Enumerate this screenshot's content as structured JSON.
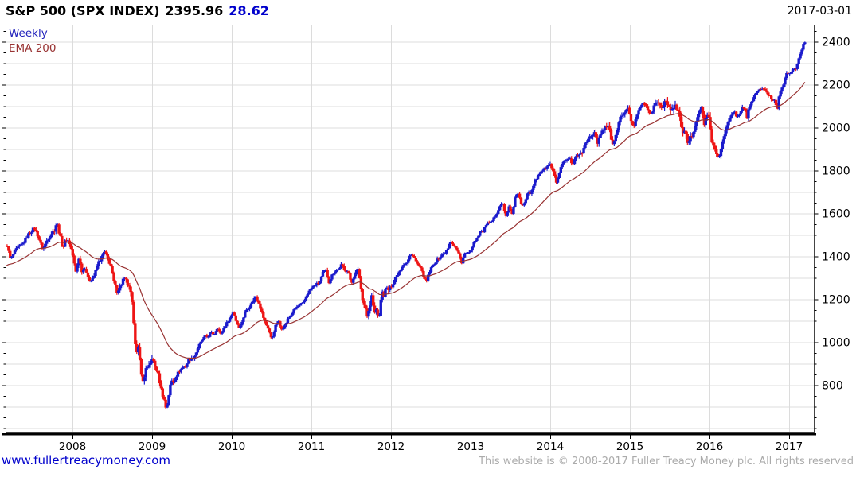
{
  "header": {
    "symbol": "S&P 500 (SPX INDEX)",
    "price": "2395.96",
    "change": "28.62",
    "date": "2017-03-01"
  },
  "legend": {
    "series1": "Weekly",
    "series2": "EMA 200"
  },
  "footer": {
    "link": "www.fullertreacymoney.com",
    "copyright": "This website is © 2008-2017 Fuller Treacy Money plc. All rights reserved"
  },
  "colors": {
    "up_bar": "#1a1acc",
    "down_bar": "#ee1515",
    "ema_line": "#993333",
    "grid": "#dcdcdc",
    "border": "#444444",
    "axis": "#000000",
    "title_change": "#0000cc",
    "legend_weekly": "#2222bb",
    "legend_ema": "#993333",
    "link": "#0000cc",
    "copyright_text": "#ababab"
  },
  "chart_data": {
    "type": "candlestick",
    "timeframe": "weekly",
    "title": "S&P 500 (SPX INDEX)",
    "last_price": 2395.96,
    "change": 28.62,
    "last_date": "2017-03-01",
    "legend_position": "top-left",
    "grid": true,
    "x_ticks": [
      2008,
      2009,
      2010,
      2011,
      2012,
      2013,
      2014,
      2015,
      2016,
      2017
    ],
    "y_ticks": [
      800,
      1000,
      1200,
      1400,
      1600,
      1800,
      2000,
      2200,
      2400
    ],
    "y_grid_step": 100,
    "y_minor_tick_step": 50,
    "ylim": [
      580,
      2480
    ],
    "xlim": [
      2007.16,
      2017.35
    ],
    "x_start": 2007.16,
    "x_end": 2017.19,
    "ema_period_weeks": 40,
    "ema_seed": 1350,
    "price_anchors": [
      [
        2007.14,
        1436
      ],
      [
        2007.18,
        1452
      ],
      [
        2007.22,
        1387
      ],
      [
        2007.3,
        1437
      ],
      [
        2007.38,
        1461
      ],
      [
        2007.45,
        1505
      ],
      [
        2007.52,
        1533
      ],
      [
        2007.56,
        1503
      ],
      [
        2007.6,
        1458
      ],
      [
        2007.63,
        1434
      ],
      [
        2007.68,
        1476
      ],
      [
        2007.73,
        1506
      ],
      [
        2007.78,
        1527
      ],
      [
        2007.8,
        1562
      ],
      [
        2007.84,
        1501
      ],
      [
        2007.88,
        1440
      ],
      [
        2007.92,
        1481
      ],
      [
        2007.96,
        1468
      ],
      [
        2008.0,
        1411
      ],
      [
        2008.04,
        1325
      ],
      [
        2008.08,
        1395
      ],
      [
        2008.12,
        1331
      ],
      [
        2008.16,
        1353
      ],
      [
        2008.2,
        1288
      ],
      [
        2008.24,
        1293
      ],
      [
        2008.28,
        1316
      ],
      [
        2008.32,
        1370
      ],
      [
        2008.36,
        1390
      ],
      [
        2008.4,
        1426
      ],
      [
        2008.44,
        1388
      ],
      [
        2008.48,
        1360
      ],
      [
        2008.52,
        1280
      ],
      [
        2008.56,
        1239
      ],
      [
        2008.6,
        1260
      ],
      [
        2008.64,
        1296
      ],
      [
        2008.68,
        1282
      ],
      [
        2008.71,
        1251
      ],
      [
        2008.74,
        1213
      ],
      [
        2008.77,
        1099
      ],
      [
        2008.8,
        941
      ],
      [
        2008.83,
        968
      ],
      [
        2008.86,
        873
      ],
      [
        2008.89,
        800
      ],
      [
        2008.92,
        887
      ],
      [
        2008.95,
        872
      ],
      [
        2008.98,
        903
      ],
      [
        2009.0,
        932
      ],
      [
        2009.03,
        890
      ],
      [
        2009.06,
        870
      ],
      [
        2009.09,
        826
      ],
      [
        2009.12,
        770
      ],
      [
        2009.15,
        735
      ],
      [
        2009.18,
        683
      ],
      [
        2009.21,
        757
      ],
      [
        2009.24,
        823
      ],
      [
        2009.27,
        816
      ],
      [
        2009.3,
        843
      ],
      [
        2009.34,
        866
      ],
      [
        2009.38,
        882
      ],
      [
        2009.42,
        887
      ],
      [
        2009.46,
        919
      ],
      [
        2009.5,
        923
      ],
      [
        2009.54,
        940
      ],
      [
        2009.58,
        979
      ],
      [
        2009.62,
        1004
      ],
      [
        2009.66,
        1026
      ],
      [
        2009.7,
        1025
      ],
      [
        2009.74,
        1044
      ],
      [
        2009.78,
        1036
      ],
      [
        2009.82,
        1071
      ],
      [
        2009.86,
        1036
      ],
      [
        2009.9,
        1069
      ],
      [
        2009.94,
        1091
      ],
      [
        2009.98,
        1115
      ],
      [
        2010.02,
        1145
      ],
      [
        2010.06,
        1092
      ],
      [
        2010.1,
        1066
      ],
      [
        2010.14,
        1109
      ],
      [
        2010.18,
        1150
      ],
      [
        2010.22,
        1166
      ],
      [
        2010.26,
        1187
      ],
      [
        2010.3,
        1217
      ],
      [
        2010.34,
        1187
      ],
      [
        2010.38,
        1136
      ],
      [
        2010.42,
        1090
      ],
      [
        2010.46,
        1065
      ],
      [
        2010.5,
        1011
      ],
      [
        2010.54,
        1065
      ],
      [
        2010.58,
        1102
      ],
      [
        2010.62,
        1064
      ],
      [
        2010.66,
        1072
      ],
      [
        2010.7,
        1105
      ],
      [
        2010.74,
        1125
      ],
      [
        2010.78,
        1149
      ],
      [
        2010.82,
        1165
      ],
      [
        2010.86,
        1176
      ],
      [
        2010.9,
        1183
      ],
      [
        2010.94,
        1221
      ],
      [
        2010.98,
        1242
      ],
      [
        2011.02,
        1258
      ],
      [
        2011.06,
        1271
      ],
      [
        2011.1,
        1276
      ],
      [
        2011.14,
        1321
      ],
      [
        2011.18,
        1340
      ],
      [
        2011.22,
        1279
      ],
      [
        2011.26,
        1313
      ],
      [
        2011.3,
        1333
      ],
      [
        2011.34,
        1340
      ],
      [
        2011.38,
        1363
      ],
      [
        2011.42,
        1331
      ],
      [
        2011.46,
        1340
      ],
      [
        2011.5,
        1268
      ],
      [
        2011.54,
        1316
      ],
      [
        2011.58,
        1345
      ],
      [
        2011.61,
        1292
      ],
      [
        2011.64,
        1199
      ],
      [
        2011.67,
        1179
      ],
      [
        2011.7,
        1124
      ],
      [
        2011.73,
        1154
      ],
      [
        2011.76,
        1218
      ],
      [
        2011.79,
        1131
      ],
      [
        2011.82,
        1155
      ],
      [
        2011.85,
        1099
      ],
      [
        2011.88,
        1238
      ],
      [
        2011.91,
        1219
      ],
      [
        2011.94,
        1255
      ],
      [
        2011.97,
        1244
      ],
      [
        2012.0,
        1258
      ],
      [
        2012.04,
        1289
      ],
      [
        2012.08,
        1316
      ],
      [
        2012.12,
        1343
      ],
      [
        2012.16,
        1366
      ],
      [
        2012.2,
        1370
      ],
      [
        2012.24,
        1404
      ],
      [
        2012.28,
        1408
      ],
      [
        2012.32,
        1370
      ],
      [
        2012.36,
        1353
      ],
      [
        2012.4,
        1318
      ],
      [
        2012.44,
        1278
      ],
      [
        2012.48,
        1326
      ],
      [
        2012.52,
        1356
      ],
      [
        2012.56,
        1376
      ],
      [
        2012.6,
        1391
      ],
      [
        2012.64,
        1406
      ],
      [
        2012.68,
        1418
      ],
      [
        2012.72,
        1438
      ],
      [
        2012.74,
        1466
      ],
      [
        2012.78,
        1460
      ],
      [
        2012.82,
        1433
      ],
      [
        2012.86,
        1414
      ],
      [
        2012.88,
        1360
      ],
      [
        2012.92,
        1409
      ],
      [
        2012.96,
        1418
      ],
      [
        2013.0,
        1426
      ],
      [
        2013.04,
        1466
      ],
      [
        2013.08,
        1486
      ],
      [
        2013.12,
        1518
      ],
      [
        2013.16,
        1515
      ],
      [
        2013.2,
        1556
      ],
      [
        2013.24,
        1551
      ],
      [
        2013.28,
        1569
      ],
      [
        2013.32,
        1597
      ],
      [
        2013.36,
        1633
      ],
      [
        2013.4,
        1650
      ],
      [
        2013.44,
        1583
      ],
      [
        2013.48,
        1631
      ],
      [
        2013.52,
        1592
      ],
      [
        2013.56,
        1680
      ],
      [
        2013.6,
        1692
      ],
      [
        2013.64,
        1633
      ],
      [
        2013.68,
        1656
      ],
      [
        2013.72,
        1710
      ],
      [
        2013.76,
        1692
      ],
      [
        2013.8,
        1745
      ],
      [
        2013.84,
        1771
      ],
      [
        2013.88,
        1798
      ],
      [
        2013.92,
        1805
      ],
      [
        2013.96,
        1818
      ],
      [
        2014.0,
        1831
      ],
      [
        2014.04,
        1790
      ],
      [
        2014.08,
        1742
      ],
      [
        2014.12,
        1797
      ],
      [
        2014.16,
        1836
      ],
      [
        2014.2,
        1846
      ],
      [
        2014.24,
        1858
      ],
      [
        2014.28,
        1816
      ],
      [
        2014.32,
        1865
      ],
      [
        2014.36,
        1878
      ],
      [
        2014.4,
        1881
      ],
      [
        2014.44,
        1925
      ],
      [
        2014.48,
        1949
      ],
      [
        2014.52,
        1968
      ],
      [
        2014.56,
        1978
      ],
      [
        2014.6,
        1925
      ],
      [
        2014.64,
        1988
      ],
      [
        2014.68,
        2002
      ],
      [
        2014.72,
        2011
      ],
      [
        2014.76,
        1965
      ],
      [
        2014.79,
        1906
      ],
      [
        2014.82,
        1965
      ],
      [
        2014.86,
        2018
      ],
      [
        2014.9,
        2064
      ],
      [
        2014.94,
        2070
      ],
      [
        2014.98,
        2089
      ],
      [
        2015.0,
        2058
      ],
      [
        2015.04,
        1995
      ],
      [
        2015.08,
        2055
      ],
      [
        2015.12,
        2097
      ],
      [
        2015.16,
        2110
      ],
      [
        2015.2,
        2108
      ],
      [
        2015.24,
        2061
      ],
      [
        2015.28,
        2081
      ],
      [
        2015.32,
        2108
      ],
      [
        2015.36,
        2117
      ],
      [
        2015.4,
        2093
      ],
      [
        2015.44,
        2126
      ],
      [
        2015.48,
        2102
      ],
      [
        2015.52,
        2077
      ],
      [
        2015.56,
        2102
      ],
      [
        2015.6,
        2080
      ],
      [
        2015.63,
        2046
      ],
      [
        2015.66,
        1971
      ],
      [
        2015.69,
        1989
      ],
      [
        2015.72,
        1921
      ],
      [
        2015.75,
        1961
      ],
      [
        2015.78,
        1952
      ],
      [
        2015.81,
        2014
      ],
      [
        2015.84,
        2033
      ],
      [
        2015.87,
        2075
      ],
      [
        2015.9,
        2089
      ],
      [
        2015.93,
        2012
      ],
      [
        2015.96,
        2061
      ],
      [
        2016.0,
        2044
      ],
      [
        2016.03,
        1922
      ],
      [
        2016.06,
        1906
      ],
      [
        2016.09,
        1880
      ],
      [
        2016.12,
        1865
      ],
      [
        2016.15,
        1918
      ],
      [
        2016.18,
        1948
      ],
      [
        2016.21,
        1999
      ],
      [
        2016.24,
        2022
      ],
      [
        2016.27,
        2050
      ],
      [
        2016.3,
        2080
      ],
      [
        2016.33,
        2062
      ],
      [
        2016.36,
        2047
      ],
      [
        2016.4,
        2091
      ],
      [
        2016.44,
        2096
      ],
      [
        2016.47,
        2037
      ],
      [
        2016.5,
        2103
      ],
      [
        2016.54,
        2130
      ],
      [
        2016.58,
        2161
      ],
      [
        2016.62,
        2175
      ],
      [
        2016.66,
        2184
      ],
      [
        2016.7,
        2169
      ],
      [
        2016.74,
        2153
      ],
      [
        2016.78,
        2133
      ],
      [
        2016.82,
        2126
      ],
      [
        2016.85,
        2085
      ],
      [
        2016.88,
        2165
      ],
      [
        2016.91,
        2192
      ],
      [
        2016.94,
        2213
      ],
      [
        2016.97,
        2258
      ],
      [
        2017.0,
        2239
      ],
      [
        2017.04,
        2277
      ],
      [
        2017.08,
        2271
      ],
      [
        2017.12,
        2316
      ],
      [
        2017.16,
        2367
      ],
      [
        2017.19,
        2396
      ]
    ],
    "volatility_anchors": [
      [
        2007.14,
        1.6
      ],
      [
        2007.6,
        2.2
      ],
      [
        2008.0,
        2.6
      ],
      [
        2008.5,
        2.4
      ],
      [
        2008.75,
        4.5
      ],
      [
        2008.9,
        6.0
      ],
      [
        2009.1,
        5.0
      ],
      [
        2009.3,
        3.6
      ],
      [
        2009.7,
        2.2
      ],
      [
        2010.1,
        2.0
      ],
      [
        2010.45,
        3.0
      ],
      [
        2010.8,
        1.8
      ],
      [
        2011.2,
        1.6
      ],
      [
        2011.55,
        2.2
      ],
      [
        2011.7,
        4.5
      ],
      [
        2011.9,
        3.2
      ],
      [
        2012.2,
        1.6
      ],
      [
        2012.5,
        1.9
      ],
      [
        2013.0,
        1.5
      ],
      [
        2013.5,
        1.6
      ],
      [
        2014.0,
        1.4
      ],
      [
        2014.79,
        2.2
      ],
      [
        2015.2,
        1.4
      ],
      [
        2015.7,
        3.2
      ],
      [
        2015.9,
        2.2
      ],
      [
        2016.05,
        3.0
      ],
      [
        2016.3,
        1.6
      ],
      [
        2016.7,
        1.2
      ],
      [
        2016.88,
        1.6
      ],
      [
        2017.1,
        0.9
      ],
      [
        2017.19,
        0.9
      ]
    ]
  }
}
